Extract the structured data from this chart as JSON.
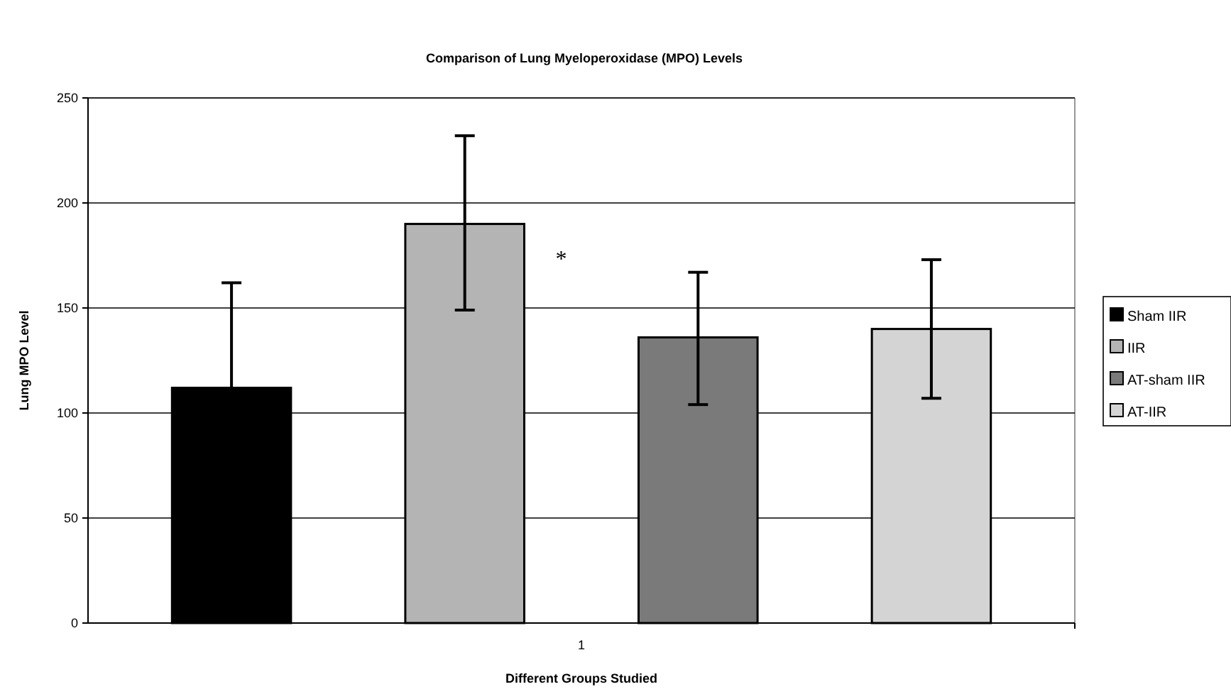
{
  "chart_data": {
    "type": "bar",
    "title": "Comparison of Lung Myeloperoxidase (MPO) Levels",
    "xlabel": "Different Groups Studied",
    "ylabel": "Lung MPO Level",
    "categories": [
      "1"
    ],
    "series": [
      {
        "name": "Sham IIR",
        "color": "#000000",
        "values": [
          112
        ],
        "errors": [
          50
        ]
      },
      {
        "name": "IIR",
        "color": "#b4b4b4",
        "values": [
          190
        ],
        "errors": [
          [
            149,
            232
          ]
        ]
      },
      {
        "name": "AT-sham IIR",
        "color": "#7a7a7a",
        "values": [
          136
        ],
        "errors": [
          [
            104,
            167
          ]
        ]
      },
      {
        "name": "AT-IIR",
        "color": "#d4d4d4",
        "values": [
          140
        ],
        "errors": [
          [
            107,
            173
          ]
        ]
      }
    ],
    "ylim": [
      0,
      250
    ],
    "yticks": [
      0,
      50,
      100,
      150,
      200,
      250
    ],
    "grid": "y",
    "legend": "right",
    "annotations": [
      "*"
    ]
  }
}
